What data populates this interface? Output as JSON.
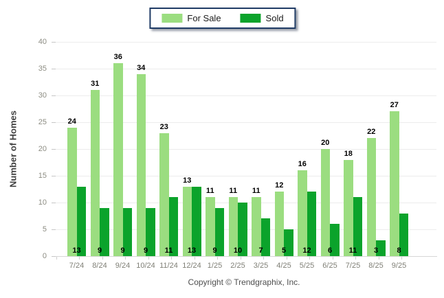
{
  "legend": {
    "items": [
      {
        "label": "For Sale",
        "color": "#9BDD80"
      },
      {
        "label": "Sold",
        "color": "#0BA32B"
      }
    ]
  },
  "y_axis": {
    "title": "Number of Homes"
  },
  "footer": {
    "copyright": "Copyright © Trendgraphix, Inc."
  },
  "chart_data": {
    "type": "bar",
    "categories": [
      "7/24",
      "8/24",
      "9/24",
      "10/24",
      "11/24",
      "12/24",
      "1/25",
      "2/25",
      "3/25",
      "4/25",
      "5/25",
      "6/25",
      "7/25",
      "8/25",
      "9/25"
    ],
    "series": [
      {
        "name": "For Sale",
        "color": "#9BDD80",
        "values": [
          24,
          31,
          36,
          34,
          23,
          13,
          11,
          11,
          11,
          12,
          16,
          20,
          18,
          22,
          27
        ]
      },
      {
        "name": "Sold",
        "color": "#0BA32B",
        "values": [
          13,
          9,
          9,
          9,
          11,
          13,
          9,
          10,
          7,
          5,
          12,
          6,
          11,
          3,
          8
        ]
      }
    ],
    "title": "",
    "xlabel": "",
    "ylabel": "Number of Homes",
    "ylim": [
      0,
      40
    ],
    "ytick_step": 5,
    "grid": true,
    "legend_position": "top-center",
    "value_labels": {
      "for_sale": "above-bar",
      "sold": "bottom-of-bar"
    },
    "footer": "Copyright © Trendgraphix, Inc."
  }
}
